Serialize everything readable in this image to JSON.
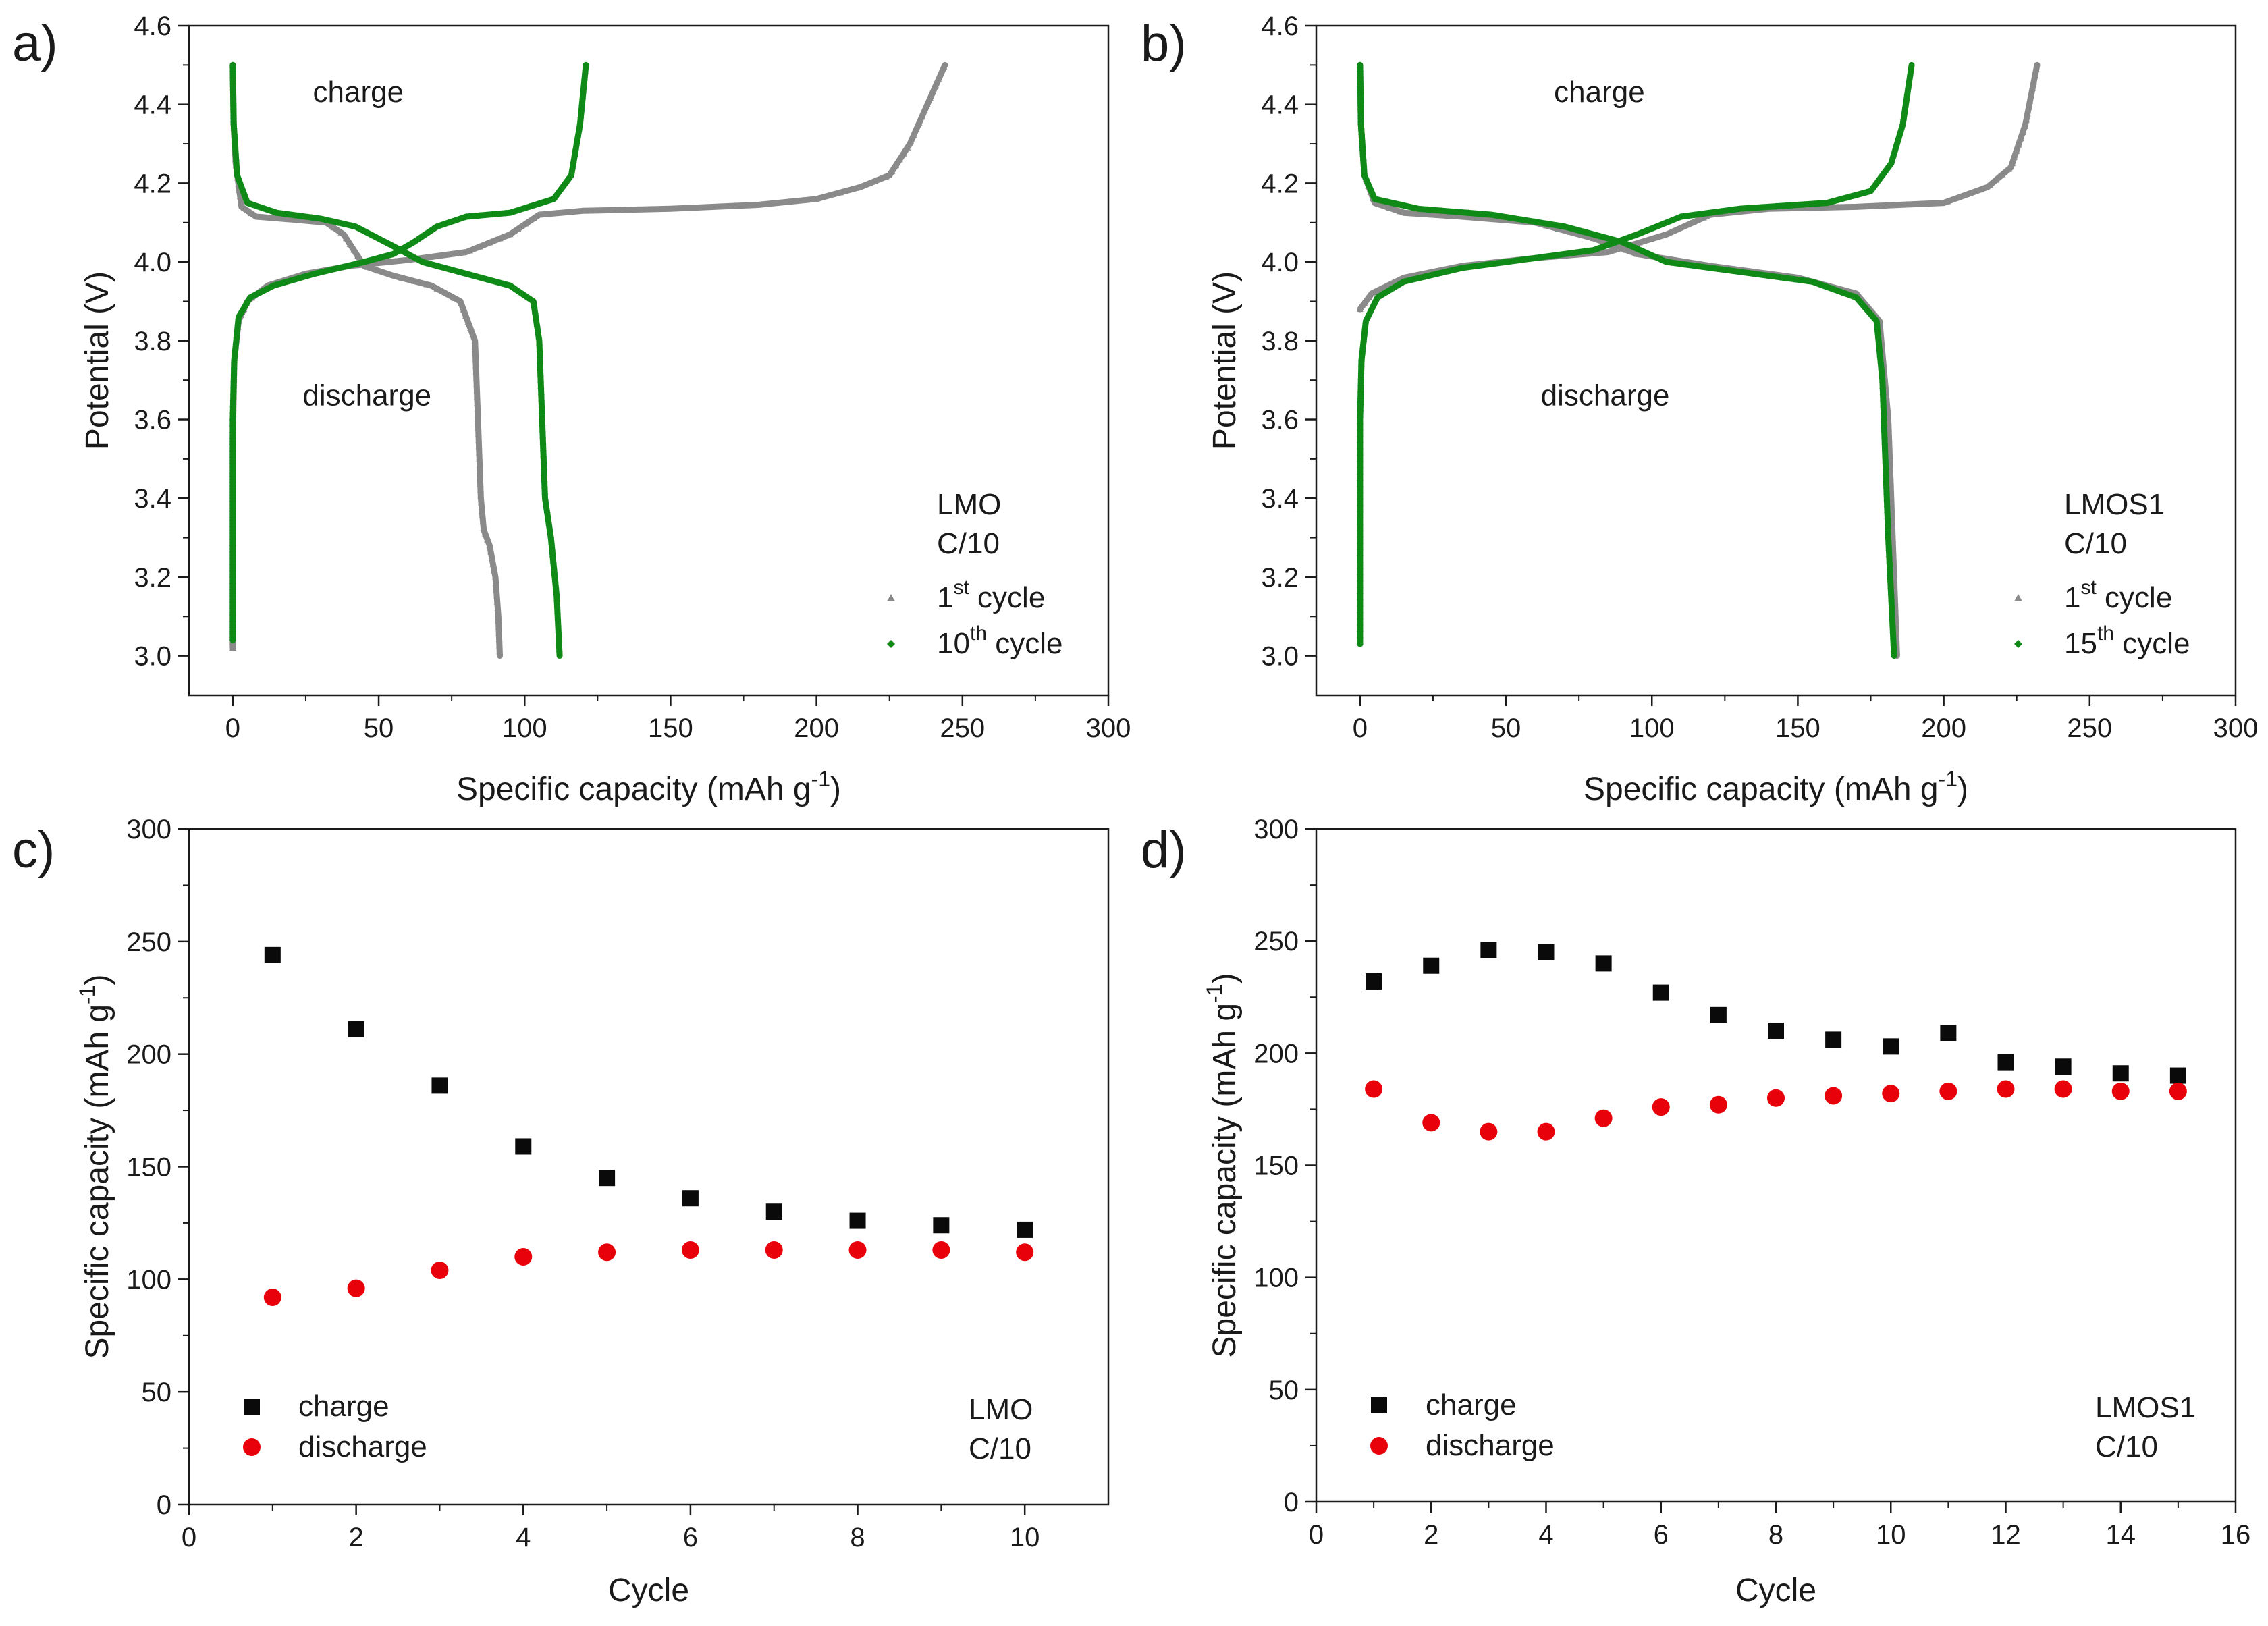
{
  "colors": {
    "first_cycle": "#8a8a8a",
    "later_cycle": "#0f8a17",
    "charge": "#0a0a0a",
    "discharge": "#e8000b",
    "axis": "#1a1a1a"
  },
  "chart_data": [
    {
      "id": "a",
      "panel_letter": "a)",
      "type": "line",
      "xlabel": "Specific capacity (mAh g",
      "xlabel_sup": "-1",
      "xlabel_end": ")",
      "ylabel": "Potential (V)",
      "xlim": [
        -15,
        300
      ],
      "ylim": [
        2.9,
        4.6
      ],
      "xticks": [
        0,
        50,
        100,
        150,
        200,
        250,
        300
      ],
      "yticks": [
        3.0,
        3.2,
        3.4,
        3.6,
        3.8,
        4.0,
        4.2,
        4.4,
        4.6
      ],
      "ytick_labels": [
        "3.0",
        "3.2",
        "3.4",
        "3.6",
        "3.8",
        "4.0",
        "4.2",
        "4.4",
        "4.6"
      ],
      "annotations": [
        {
          "text": "charge",
          "x": 43,
          "y": 4.43
        },
        {
          "text": "discharge",
          "x": 46,
          "y": 3.66
        }
      ],
      "info_lines": [
        "LMO",
        "C/10"
      ],
      "legend": [
        {
          "label": "1",
          "sup": "st",
          "tail": " cycle",
          "marker": "triangle",
          "color_key": "first_cycle"
        },
        {
          "label": "10",
          "sup": "th",
          "tail": " cycle",
          "marker": "diamond",
          "color_key": "later_cycle"
        }
      ],
      "series": [
        {
          "color_key": "first_cycle",
          "segments": [
            [
              [
                0,
                3.02
              ],
              [
                0,
                3.55
              ],
              [
                0.5,
                3.75
              ],
              [
                2,
                3.85
              ],
              [
                5,
                3.9
              ],
              [
                12,
                3.94
              ],
              [
                25,
                3.97
              ],
              [
                40,
                3.99
              ],
              [
                60,
                4.005
              ],
              [
                80,
                4.025
              ],
              [
                95,
                4.07
              ],
              [
                105,
                4.12
              ],
              [
                120,
                4.13
              ],
              [
                150,
                4.135
              ],
              [
                180,
                4.145
              ],
              [
                200,
                4.16
              ],
              [
                215,
                4.19
              ],
              [
                225,
                4.22
              ],
              [
                232,
                4.3
              ],
              [
                238,
                4.4
              ],
              [
                244,
                4.5
              ]
            ],
            [
              [
                0,
                4.5
              ],
              [
                0.3,
                4.35
              ],
              [
                1,
                4.25
              ],
              [
                3,
                4.14
              ],
              [
                8,
                4.115
              ],
              [
                20,
                4.108
              ],
              [
                32,
                4.1
              ],
              [
                38,
                4.07
              ],
              [
                45,
                3.99
              ],
              [
                55,
                3.965
              ],
              [
                68,
                3.94
              ],
              [
                78,
                3.9
              ],
              [
                83,
                3.8
              ],
              [
                84,
                3.6
              ],
              [
                85,
                3.4
              ],
              [
                86,
                3.32
              ],
              [
                88,
                3.28
              ],
              [
                90,
                3.2
              ],
              [
                91,
                3.1
              ],
              [
                91.5,
                3.0
              ]
            ]
          ]
        },
        {
          "color_key": "later_cycle",
          "segments": [
            [
              [
                0,
                3.04
              ],
              [
                0,
                3.6
              ],
              [
                0.5,
                3.75
              ],
              [
                2,
                3.86
              ],
              [
                6,
                3.91
              ],
              [
                14,
                3.94
              ],
              [
                28,
                3.97
              ],
              [
                45,
                4.0
              ],
              [
                55,
                4.02
              ],
              [
                62,
                4.05
              ],
              [
                70,
                4.09
              ],
              [
                80,
                4.115
              ],
              [
                95,
                4.125
              ],
              [
                110,
                4.16
              ],
              [
                116,
                4.22
              ],
              [
                119,
                4.35
              ],
              [
                121,
                4.5
              ]
            ],
            [
              [
                0,
                4.5
              ],
              [
                0.3,
                4.35
              ],
              [
                1.5,
                4.22
              ],
              [
                5,
                4.15
              ],
              [
                15,
                4.125
              ],
              [
                30,
                4.11
              ],
              [
                42,
                4.09
              ],
              [
                55,
                4.04
              ],
              [
                65,
                4.0
              ],
              [
                80,
                3.97
              ],
              [
                95,
                3.94
              ],
              [
                103,
                3.9
              ],
              [
                105,
                3.8
              ],
              [
                106,
                3.6
              ],
              [
                107,
                3.4
              ],
              [
                109,
                3.3
              ],
              [
                111,
                3.15
              ],
              [
                112,
                3.0
              ]
            ]
          ]
        }
      ]
    },
    {
      "id": "b",
      "panel_letter": "b)",
      "type": "line",
      "xlabel": "Specific capacity (mAh g",
      "xlabel_sup": "-1",
      "xlabel_end": ")",
      "ylabel": "Potential (V)",
      "xlim": [
        -15,
        300
      ],
      "ylim": [
        2.9,
        4.6
      ],
      "xticks": [
        0,
        50,
        100,
        150,
        200,
        250,
        300
      ],
      "yticks": [
        3.0,
        3.2,
        3.4,
        3.6,
        3.8,
        4.0,
        4.2,
        4.4,
        4.6
      ],
      "ytick_labels": [
        "3.0",
        "3.2",
        "3.4",
        "3.6",
        "3.8",
        "4.0",
        "4.2",
        "4.4",
        "4.6"
      ],
      "annotations": [
        {
          "text": "charge",
          "x": 82,
          "y": 4.43
        },
        {
          "text": "discharge",
          "x": 84,
          "y": 3.66
        }
      ],
      "info_lines": [
        "LMOS1",
        "C/10"
      ],
      "legend": [
        {
          "label": "1",
          "sup": "st",
          "tail": " cycle",
          "marker": "triangle",
          "color_key": "first_cycle"
        },
        {
          "label": "15",
          "sup": "th",
          "tail": " cycle",
          "marker": "diamond",
          "color_key": "later_cycle"
        }
      ],
      "series": [
        {
          "color_key": "first_cycle",
          "segments": [
            [
              [
                0,
                3.88
              ],
              [
                4,
                3.92
              ],
              [
                15,
                3.96
              ],
              [
                35,
                3.99
              ],
              [
                60,
                4.01
              ],
              [
                85,
                4.025
              ],
              [
                105,
                4.07
              ],
              [
                120,
                4.12
              ],
              [
                140,
                4.135
              ],
              [
                170,
                4.14
              ],
              [
                200,
                4.15
              ],
              [
                215,
                4.19
              ],
              [
                223,
                4.24
              ],
              [
                228,
                4.35
              ],
              [
                232,
                4.5
              ]
            ],
            [
              [
                0,
                4.5
              ],
              [
                0.3,
                4.35
              ],
              [
                1.5,
                4.22
              ],
              [
                5,
                4.15
              ],
              [
                15,
                4.125
              ],
              [
                35,
                4.115
              ],
              [
                60,
                4.1
              ],
              [
                80,
                4.06
              ],
              [
                95,
                4.02
              ],
              [
                120,
                3.99
              ],
              [
                150,
                3.96
              ],
              [
                170,
                3.92
              ],
              [
                178,
                3.85
              ],
              [
                181,
                3.6
              ],
              [
                182,
                3.4
              ],
              [
                183,
                3.2
              ],
              [
                184,
                3.0
              ]
            ]
          ]
        },
        {
          "color_key": "later_cycle",
          "segments": [
            [
              [
                0,
                3.03
              ],
              [
                0,
                3.6
              ],
              [
                0.5,
                3.75
              ],
              [
                2,
                3.85
              ],
              [
                6,
                3.91
              ],
              [
                15,
                3.95
              ],
              [
                35,
                3.985
              ],
              [
                60,
                4.01
              ],
              [
                80,
                4.03
              ],
              [
                95,
                4.07
              ],
              [
                110,
                4.115
              ],
              [
                130,
                4.135
              ],
              [
                160,
                4.15
              ],
              [
                175,
                4.18
              ],
              [
                182,
                4.25
              ],
              [
                186,
                4.35
              ],
              [
                189,
                4.5
              ]
            ],
            [
              [
                0,
                4.5
              ],
              [
                0.3,
                4.35
              ],
              [
                1.5,
                4.22
              ],
              [
                5,
                4.16
              ],
              [
                20,
                4.135
              ],
              [
                45,
                4.12
              ],
              [
                70,
                4.09
              ],
              [
                90,
                4.05
              ],
              [
                105,
                4.0
              ],
              [
                130,
                3.975
              ],
              [
                155,
                3.95
              ],
              [
                170,
                3.91
              ],
              [
                177,
                3.85
              ],
              [
                179,
                3.7
              ],
              [
                180,
                3.5
              ],
              [
                181,
                3.3
              ],
              [
                182,
                3.15
              ],
              [
                183,
                3.0
              ]
            ]
          ]
        }
      ]
    },
    {
      "id": "c",
      "panel_letter": "c)",
      "type": "scatter",
      "xlabel": "Cycle",
      "ylabel": "Specific capacity (mAh g",
      "ylabel_sup": "-1",
      "ylabel_end": ")",
      "xlim": [
        0,
        11
      ],
      "ylim": [
        0,
        300
      ],
      "xticks": [
        0,
        2,
        4,
        6,
        8,
        10
      ],
      "yticks": [
        0,
        50,
        100,
        150,
        200,
        250,
        300
      ],
      "info_lines": [
        "LMO",
        "C/10"
      ],
      "legend": [
        {
          "label": "charge",
          "marker": "square",
          "color_key": "charge"
        },
        {
          "label": "discharge",
          "marker": "circle",
          "color_key": "discharge"
        }
      ],
      "series": [
        {
          "name": "charge",
          "marker": "square",
          "color_key": "charge",
          "x": [
            1,
            2,
            3,
            4,
            5,
            6,
            7,
            8,
            9,
            10
          ],
          "y": [
            244,
            211,
            186,
            159,
            145,
            136,
            130,
            126,
            124,
            122
          ]
        },
        {
          "name": "discharge",
          "marker": "circle",
          "color_key": "discharge",
          "x": [
            1,
            2,
            3,
            4,
            5,
            6,
            7,
            8,
            9,
            10
          ],
          "y": [
            92,
            96,
            104,
            110,
            112,
            113,
            113,
            113,
            113,
            112
          ]
        }
      ]
    },
    {
      "id": "d",
      "panel_letter": "d)",
      "type": "scatter",
      "xlabel": "Cycle",
      "ylabel": "Specific capacity (mAh g",
      "ylabel_sup": "-1",
      "ylabel_end": ")",
      "xlim": [
        0,
        16
      ],
      "ylim": [
        0,
        300
      ],
      "xticks": [
        0,
        2,
        4,
        6,
        8,
        10,
        12,
        14,
        16
      ],
      "yticks": [
        0,
        50,
        100,
        150,
        200,
        250,
        300
      ],
      "info_lines": [
        "LMOS1",
        "C/10"
      ],
      "legend": [
        {
          "label": "charge",
          "marker": "square",
          "color_key": "charge"
        },
        {
          "label": "discharge",
          "marker": "circle",
          "color_key": "discharge"
        }
      ],
      "series": [
        {
          "name": "charge",
          "marker": "square",
          "color_key": "charge",
          "x": [
            1,
            2,
            3,
            4,
            5,
            6,
            7,
            8,
            9,
            10,
            11,
            12,
            13,
            14,
            15
          ],
          "y": [
            232,
            239,
            246,
            245,
            240,
            227,
            217,
            210,
            206,
            203,
            209,
            196,
            194,
            191,
            190
          ]
        },
        {
          "name": "discharge",
          "marker": "circle",
          "color_key": "discharge",
          "x": [
            1,
            2,
            3,
            4,
            5,
            6,
            7,
            8,
            9,
            10,
            11,
            12,
            13,
            14,
            15
          ],
          "y": [
            184,
            169,
            165,
            165,
            171,
            176,
            177,
            180,
            181,
            182,
            183,
            184,
            184,
            183,
            183
          ]
        }
      ]
    }
  ]
}
